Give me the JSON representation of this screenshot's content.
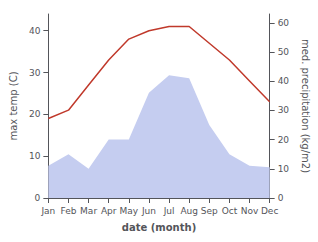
{
  "chart_data": {
    "type": "line",
    "categories": [
      "Jan",
      "Feb",
      "Mar",
      "Apr",
      "May",
      "Jun",
      "Jul",
      "Aug",
      "Sep",
      "Oct",
      "Nov",
      "Dec"
    ],
    "xlabel": "date (month)",
    "ylabel": "max temp (C)",
    "y2label": "med. precipitation (kg/m2)",
    "series": [
      {
        "type": "area",
        "color": "#c5cdf0",
        "axis": "y2",
        "values": [
          11,
          15,
          10,
          20,
          20,
          36,
          42,
          41,
          25,
          15,
          11,
          10.5
        ]
      },
      {
        "type": "line",
        "color": "#c0392b",
        "values": [
          19,
          21,
          27,
          33,
          38,
          40,
          41,
          41,
          37,
          33,
          28,
          23
        ]
      }
    ],
    "ylim": [
      0,
      44
    ],
    "yticks": [
      0,
      10,
      20,
      30,
      40
    ],
    "y2lim": [
      0,
      63
    ],
    "y2ticks": [
      0,
      10,
      20,
      30,
      40,
      50,
      60
    ],
    "grid": false
  }
}
